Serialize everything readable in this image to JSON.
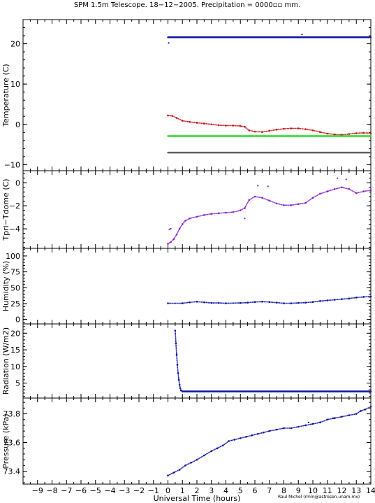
{
  "chart_data": {
    "type": "scatter",
    "title": "SPM 1.5m Telescope. 18−12−2005. Precipitation = 0000▫▫ mm.",
    "xlabel": "Universal Time (hours)",
    "credit": "Raul Michel (rmm@astrosen.unam.mx)",
    "xlim": [
      -10,
      14
    ],
    "xticks": [
      -9,
      -8,
      -7,
      -6,
      -5,
      -4,
      -3,
      -2,
      -1,
      0,
      1,
      2,
      3,
      4,
      5,
      6,
      7,
      8,
      9,
      10,
      11,
      12,
      13,
      14
    ],
    "x_tick_labels": [
      "−9",
      "−8",
      "−7",
      "−6",
      "−5",
      "−4",
      "−3",
      "−2",
      "−1",
      "0",
      "1",
      "2",
      "3",
      "4",
      "5",
      "6",
      "7",
      "8",
      "9",
      "10",
      "11",
      "12",
      "13",
      "14"
    ],
    "grid": false,
    "panels": [
      {
        "ylabel": "Temperature (C)",
        "ylim": [
          -11.5,
          26
        ],
        "yticks": [
          -10,
          0,
          10,
          20
        ],
        "ytick_labels": [
          "−10",
          "0",
          "10",
          "20"
        ],
        "series": [
          {
            "color": "#0a14a0",
            "style": "line",
            "x": [
              0,
              14
            ],
            "y": [
              21.6,
              21.6
            ]
          },
          {
            "color": "#cc1010",
            "style": "points",
            "x": [
              0,
              0.3,
              0.6,
              1,
              1.5,
              2,
              2.5,
              3,
              3.5,
              4,
              4.5,
              5,
              5.3,
              5.6,
              6,
              6.5,
              7,
              7.5,
              8,
              8.5,
              9,
              9.5,
              10,
              10.5,
              11,
              11.5,
              12,
              12.5,
              13,
              13.5,
              14
            ],
            "y": [
              2.2,
              2.1,
              1.6,
              0.9,
              0.6,
              0.4,
              0.2,
              0.0,
              -0.2,
              -0.3,
              -0.3,
              -0.4,
              -0.6,
              -1.5,
              -1.8,
              -1.9,
              -1.6,
              -1.3,
              -1.1,
              -1.0,
              -1.0,
              -1.2,
              -1.5,
              -1.9,
              -2.3,
              -2.5,
              -2.6,
              -2.4,
              -2.2,
              -2.1,
              -2.2
            ]
          },
          {
            "color": "#22dd22",
            "style": "line",
            "x": [
              0,
              14
            ],
            "y": [
              -2.9,
              -2.9
            ]
          },
          {
            "color": "#606060",
            "style": "line",
            "x": [
              0,
              14
            ],
            "y": [
              -7.0,
              -7.0
            ]
          }
        ],
        "outliers": [
          {
            "color": "#0a14a0",
            "x": [
              0.05,
              9.25
            ],
            "y": [
              20.2,
              22.3
            ]
          }
        ]
      },
      {
        "ylabel": "Tpri−Tdome (C)",
        "ylim": [
          -5.7,
          1.05
        ],
        "yticks": [
          -4,
          -2,
          0
        ],
        "ytick_labels": [
          "−4",
          "−2",
          "0"
        ],
        "series": [
          {
            "color": "#8822cc",
            "style": "points",
            "x": [
              0,
              0.2,
              0.4,
              0.6,
              0.8,
              1,
              1.2,
              1.5,
              2,
              2.5,
              3,
              3.5,
              4,
              4.5,
              5,
              5.3,
              5.6,
              6,
              6.5,
              7,
              7.5,
              8,
              8.5,
              9,
              9.5,
              10,
              10.5,
              11,
              11.5,
              12,
              12.5,
              13,
              13.5,
              14
            ],
            "y": [
              -5.3,
              -5.15,
              -4.9,
              -4.5,
              -4.0,
              -3.6,
              -3.3,
              -3.1,
              -2.95,
              -2.8,
              -2.7,
              -2.65,
              -2.6,
              -2.55,
              -2.4,
              -2.2,
              -1.5,
              -1.2,
              -1.3,
              -1.55,
              -1.8,
              -1.95,
              -1.95,
              -1.85,
              -1.75,
              -1.3,
              -0.95,
              -0.75,
              -0.55,
              -0.4,
              -0.55,
              -0.9,
              -0.75,
              -0.65
            ]
          }
        ],
        "outliers": [
          {
            "color": "#8822cc",
            "x": [
              0.1,
              0.2,
              5.3,
              6.2,
              6.9,
              11.7,
              12.3
            ],
            "y": [
              -4.05,
              -4.0,
              -3.1,
              -0.25,
              -0.3,
              0.4,
              0.3
            ]
          }
        ]
      },
      {
        "ylabel": "Humidity (%)",
        "ylim": [
          -7,
          112
        ],
        "yticks": [
          0,
          25,
          50,
          75,
          100
        ],
        "ytick_labels": [
          "0",
          "25",
          "50",
          "75",
          "100"
        ],
        "series": [
          {
            "color": "#0a14a0",
            "style": "points",
            "x": [
              0,
              1,
              1.5,
              2,
              2.5,
              3,
              3.5,
              4,
              5,
              5.5,
              6,
              6.5,
              7,
              7.5,
              8,
              8.5,
              9,
              9.5,
              10,
              10.5,
              11,
              11.5,
              12,
              12.5,
              13,
              13.5,
              14
            ],
            "y": [
              25.5,
              25.5,
              27,
              28,
              27,
              26,
              26,
              25.5,
              26,
              26.5,
              27.5,
              28,
              27.5,
              26.5,
              25.5,
              25.5,
              26,
              26.5,
              27.5,
              29,
              30,
              31,
              32,
              33,
              34.5,
              35.5,
              36
            ]
          }
        ],
        "outliers": []
      },
      {
        "ylabel": "Radiation (W/m2)",
        "ylim": [
          0.5,
          22.8
        ],
        "yticks": [
          5,
          10,
          15,
          20
        ],
        "ytick_labels": [
          "5",
          "10",
          "15",
          "20"
        ],
        "series": [
          {
            "color": "#0a14a0",
            "style": "points",
            "x": [
              0.5,
              0.55,
              0.6,
              0.65,
              0.7,
              0.75,
              0.8,
              0.85,
              0.9,
              1.0
            ],
            "y": [
              20.8,
              17.0,
              13.5,
              10.5,
              8.0,
              6.0,
              4.5,
              3.5,
              2.8,
              2.5
            ]
          },
          {
            "color": "#0a14a0",
            "style": "line",
            "x": [
              1.0,
              14
            ],
            "y": [
              2.5,
              2.5
            ]
          }
        ],
        "outliers": []
      },
      {
        "ylabel": "Pressure (kPa)",
        "ylim": [
          73.31,
          73.91
        ],
        "yticks": [
          73.4,
          73.6,
          73.8
        ],
        "ytick_labels": [
          "73.4",
          "73.6",
          "73.8"
        ],
        "series": [
          {
            "color": "#0a14a0",
            "style": "points",
            "x": [
              0,
              0.4,
              0.8,
              1.2,
              1.6,
              2.0,
              2.5,
              3.0,
              3.4,
              3.8,
              4.2,
              4.6,
              5.0,
              5.4,
              5.8,
              6.2,
              6.6,
              7.0,
              7.5,
              8.0,
              8.5,
              9.0,
              9.5,
              10.0,
              10.5,
              11.0,
              11.5,
              12.0,
              12.5,
              13.0,
              13.3,
              13.6,
              14.0
            ],
            "y": [
              73.37,
              73.39,
              73.41,
              73.44,
              73.46,
              73.48,
              73.51,
              73.54,
              73.56,
              73.58,
              73.61,
              73.62,
              73.63,
              73.64,
              73.65,
              73.66,
              73.67,
              73.68,
              73.69,
              73.7,
              73.7,
              73.71,
              73.72,
              73.73,
              73.74,
              73.76,
              73.77,
              73.78,
              73.79,
              73.8,
              73.82,
              73.83,
              73.85
            ]
          }
        ],
        "outliers": [
          {
            "color": "#0a14a0",
            "x": [
              9.7,
              11.4
            ],
            "y": [
              73.74,
              73.77
            ]
          }
        ]
      }
    ]
  }
}
